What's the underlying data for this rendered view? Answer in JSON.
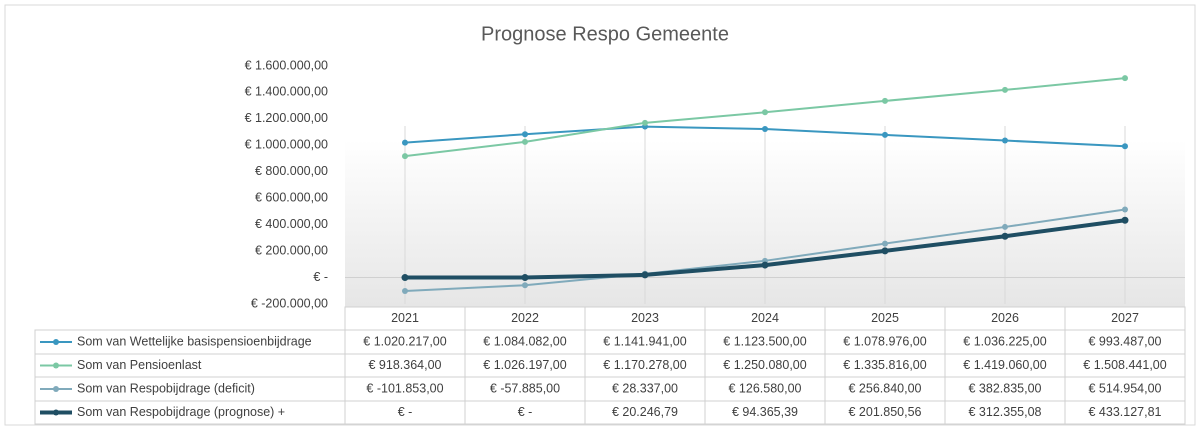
{
  "chart_data": {
    "type": "line",
    "title": "Prognose Respo Gemeente",
    "categories": [
      "2021",
      "2022",
      "2023",
      "2024",
      "2025",
      "2026",
      "2027"
    ],
    "ylim": [
      -200000,
      1600000
    ],
    "yticks": [
      {
        "value": -200000,
        "label": "€ -200.000,00"
      },
      {
        "value": 0,
        "label": "€ -"
      },
      {
        "value": 200000,
        "label": "€ 200.000,00"
      },
      {
        "value": 400000,
        "label": "€ 400.000,00"
      },
      {
        "value": 600000,
        "label": "€ 600.000,00"
      },
      {
        "value": 800000,
        "label": "€ 800.000,00"
      },
      {
        "value": 1000000,
        "label": "€ 1.000.000,00"
      },
      {
        "value": 1200000,
        "label": "€ 1.200.000,00"
      },
      {
        "value": 1400000,
        "label": "€ 1.400.000,00"
      },
      {
        "value": 1600000,
        "label": "€ 1.600.000,00"
      }
    ],
    "grid": false,
    "series": [
      {
        "name": "Som van Wettelijke basispensioenbijdrage",
        "color": "#3a97c0",
        "width": 2,
        "values": [
          1020217,
          1084082,
          1141941,
          1123500,
          1078976,
          1036225,
          993487
        ],
        "value_labels": [
          "€ 1.020.217,00",
          "€ 1.084.082,00",
          "€ 1.141.941,00",
          "€ 1.123.500,00",
          "€ 1.078.976,00",
          "€ 1.036.225,00",
          "€ 993.487,00"
        ]
      },
      {
        "name": "Som van Pensioenlast",
        "color": "#7bc8a4",
        "width": 2,
        "values": [
          918364,
          1026197,
          1170278,
          1250080,
          1335816,
          1419060,
          1508441
        ],
        "value_labels": [
          "€ 918.364,00",
          "€ 1.026.197,00",
          "€ 1.170.278,00",
          "€ 1.250.080,00",
          "€ 1.335.816,00",
          "€ 1.419.060,00",
          "€ 1.508.441,00"
        ]
      },
      {
        "name": "Som van Respobijdrage (deficit)",
        "color": "#80aabb",
        "width": 2,
        "values": [
          -101853,
          -57885,
          28337,
          126580,
          256840,
          382835,
          514954
        ],
        "value_labels": [
          "€ -101.853,00",
          "€ -57.885,00",
          "€ 28.337,00",
          "€ 126.580,00",
          "€ 256.840,00",
          "€ 382.835,00",
          "€ 514.954,00"
        ]
      },
      {
        "name": "Som van Respobijdrage (prognose) +",
        "color": "#1f4e63",
        "width": 4,
        "values": [
          0,
          0,
          20246.79,
          94365.39,
          201850.56,
          312355.08,
          433127.81
        ],
        "value_labels": [
          "€ -",
          "€ -",
          "€ 20.246,79",
          "€ 94.365,39",
          "€ 201.850,56",
          "€ 312.355,08",
          "€ 433.127,81"
        ]
      }
    ]
  }
}
